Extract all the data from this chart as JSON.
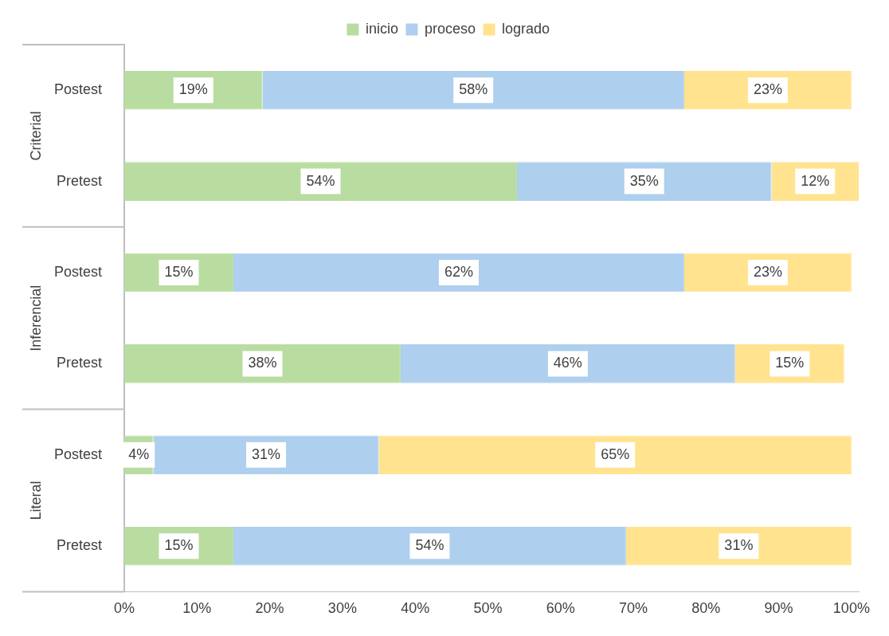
{
  "chart_data": {
    "type": "bar",
    "orientation": "horizontal",
    "stacked": true,
    "categories": [
      "Postest",
      "Pretest",
      "Postest",
      "Pretest",
      "Postest",
      "Pretest"
    ],
    "series": [
      {
        "name": "inicio",
        "color": "#b9dca0",
        "values": [
          19,
          54,
          15,
          38,
          4,
          15
        ],
        "value_labels": [
          "19%",
          "54%",
          "15%",
          "38%",
          "4%",
          "15%"
        ]
      },
      {
        "name": "proceso",
        "color": "#aecfee",
        "values": [
          58,
          35,
          62,
          46,
          31,
          54
        ],
        "value_labels": [
          "58%",
          "35%",
          "62%",
          "46%",
          "31%",
          "54%"
        ]
      },
      {
        "name": "logrado",
        "color": "#ffe38f",
        "values": [
          23,
          12,
          23,
          15,
          65,
          31
        ],
        "value_labels": [
          "23%",
          "12%",
          "23%",
          "15%",
          "65%",
          "31%"
        ]
      }
    ],
    "xlim": [
      0,
      101
    ],
    "xticks": [
      {
        "value": 0,
        "label": "0%"
      },
      {
        "value": 10,
        "label": "10%"
      },
      {
        "value": 20,
        "label": "20%"
      },
      {
        "value": 30,
        "label": "30%"
      },
      {
        "value": 40,
        "label": "40%"
      },
      {
        "value": 50,
        "label": "50%"
      },
      {
        "value": 60,
        "label": "60%"
      },
      {
        "value": 70,
        "label": "70%"
      },
      {
        "value": 80,
        "label": "80%"
      },
      {
        "value": 90,
        "label": "90%"
      },
      {
        "value": 100,
        "label": "100%"
      }
    ],
    "annotations": [
      "Criterial",
      "Inferencial",
      "Literal"
    ],
    "legend": "top",
    "grid": false
  }
}
